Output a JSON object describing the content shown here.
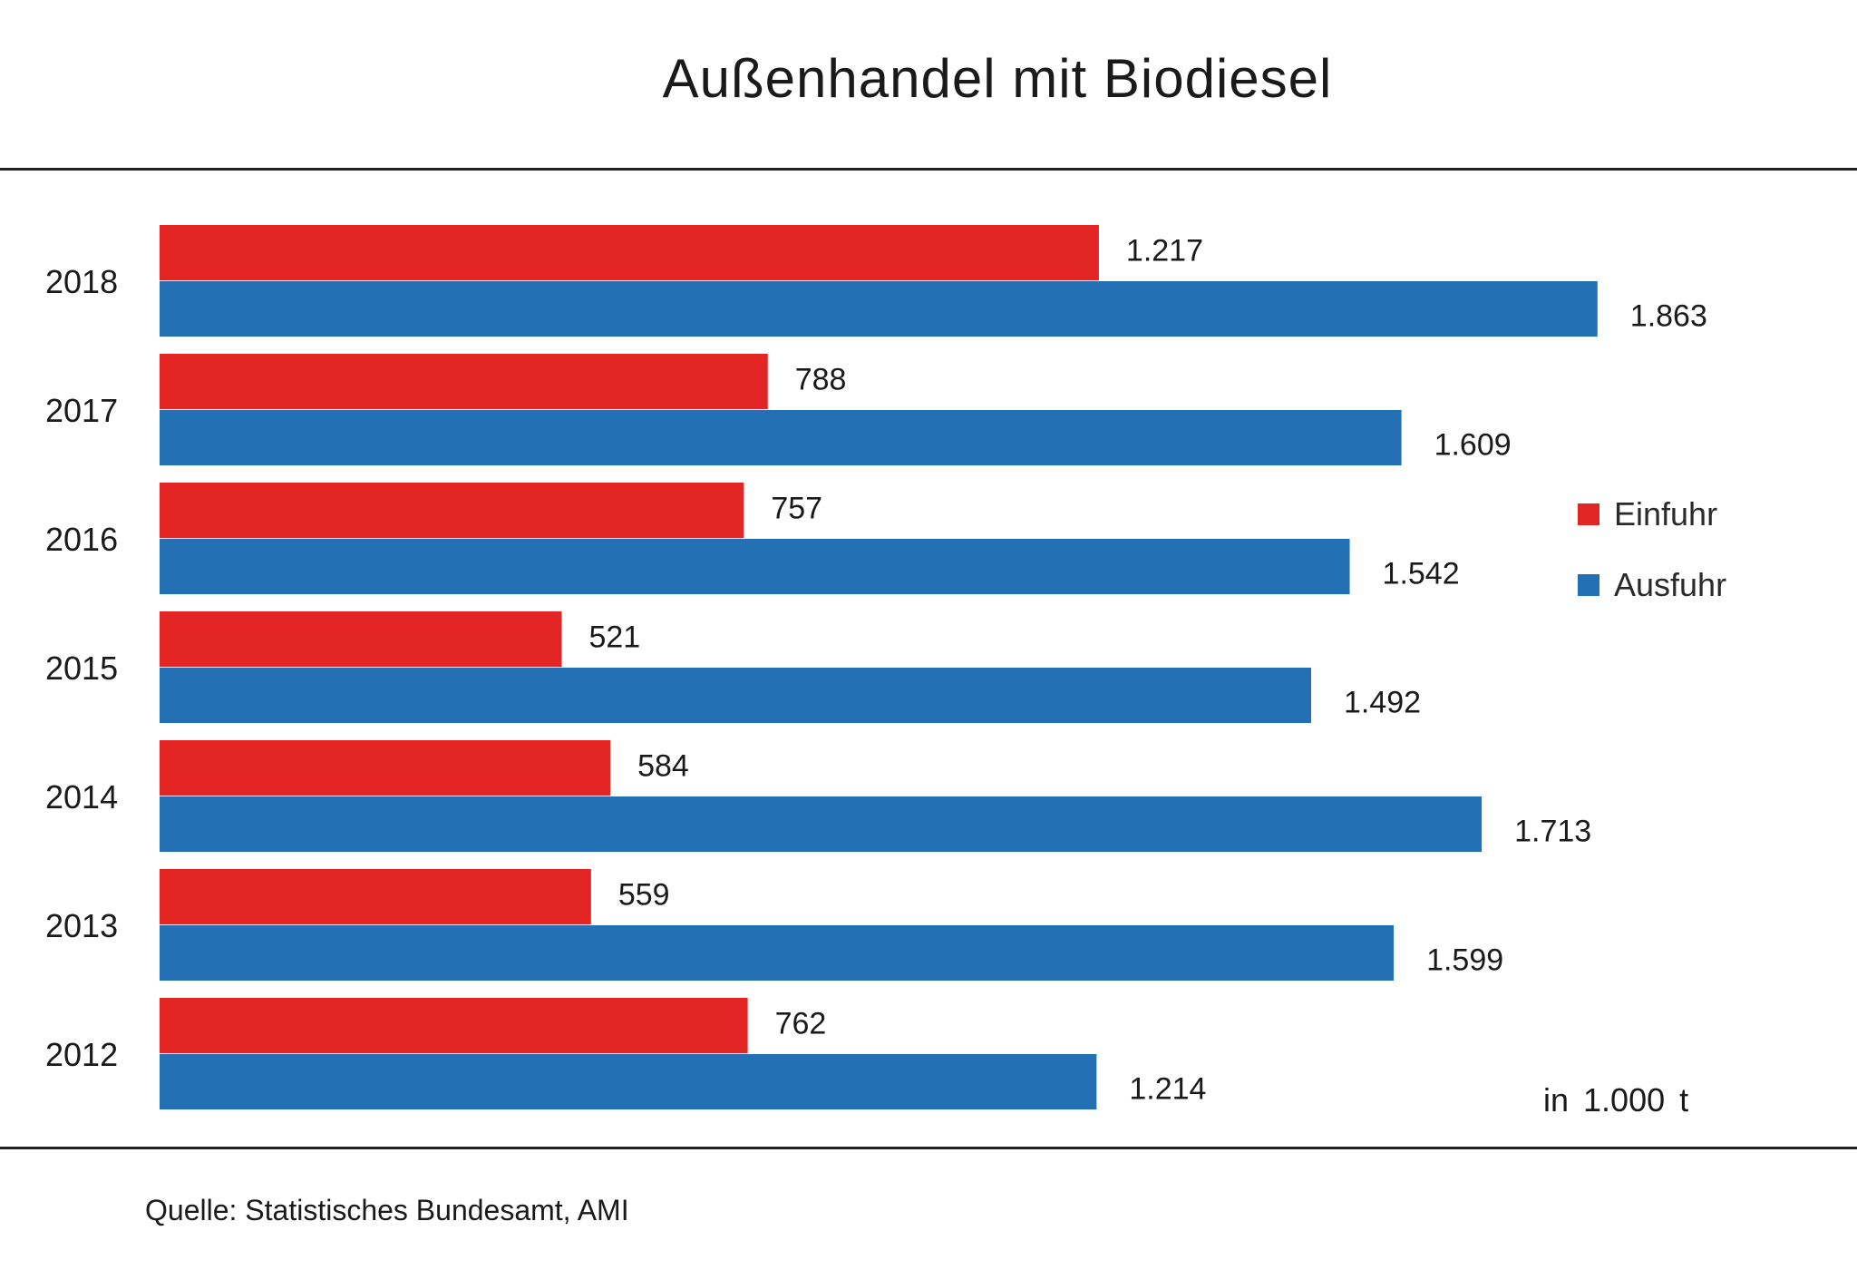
{
  "chart_data": {
    "type": "bar",
    "orientation": "horizontal",
    "title": "Außenhandel mit Biodiesel",
    "categories": [
      "2018",
      "2017",
      "2016",
      "2015",
      "2014",
      "2013",
      "2012"
    ],
    "series": [
      {
        "name": "Einfuhr",
        "color": "#e32524",
        "values": [
          1217,
          788,
          757,
          521,
          584,
          559,
          762
        ],
        "labels": [
          "1.217",
          "788",
          "757",
          "521",
          "584",
          "559",
          "762"
        ]
      },
      {
        "name": "Ausfuhr",
        "color": "#2370b4",
        "values": [
          1863,
          1609,
          1542,
          1492,
          1713,
          1599,
          1214
        ],
        "labels": [
          "1.863",
          "1.609",
          "1.542",
          "1.492",
          "1.713",
          "1.599",
          "1.214"
        ]
      }
    ],
    "unit": "in 1.000  t",
    "legend_position": "right",
    "grid": false,
    "axes_visible": false
  },
  "source": "Quelle:  Statistisches Bundesamt, AMI"
}
